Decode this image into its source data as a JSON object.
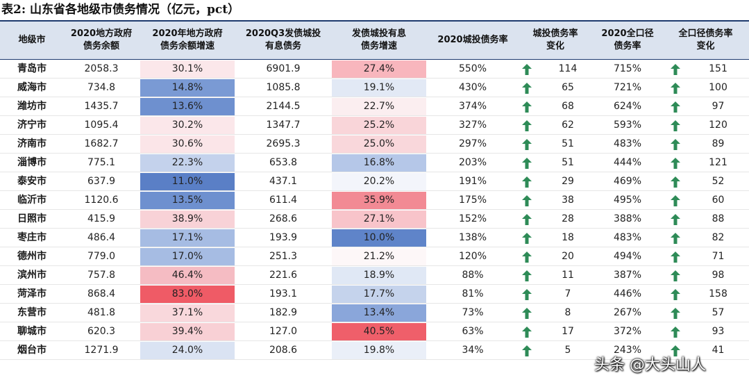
{
  "caption": "表2:  山东省各地级市债务情况（亿元，pct）",
  "columns": [
    "地级市",
    "2020地方政府\n债务余额",
    "2020年地方政府\n债务余额增速",
    "2020Q3发债城投\n有息债务",
    "发债城投有息\n债务增速",
    "2020城投债务率",
    "城投债务率\n变化",
    "2020全口径\n债务率",
    "全口径债务率\n变化"
  ],
  "rows": [
    {
      "city": "青岛市",
      "gov_debt": "2058.3",
      "gov_growth": "30.1%",
      "gov_growth_color": "#fbe7ea",
      "lgfv_debt": "6901.9",
      "lgfv_growth": "27.4%",
      "lgfv_growth_color": "#f8b6bd",
      "lgfv_ratio": "550%",
      "lgfv_change": "114",
      "total_ratio": "715%",
      "total_change": "151"
    },
    {
      "city": "威海市",
      "gov_debt": "734.8",
      "gov_growth": "14.8%",
      "gov_growth_color": "#7a9ad4",
      "lgfv_debt": "1085.8",
      "lgfv_growth": "19.1%",
      "lgfv_growth_color": "#e2e9f5",
      "lgfv_ratio": "430%",
      "lgfv_change": "65",
      "total_ratio": "721%",
      "total_change": "100"
    },
    {
      "city": "潍坊市",
      "gov_debt": "1435.7",
      "gov_growth": "13.6%",
      "gov_growth_color": "#6e90cf",
      "lgfv_debt": "2144.5",
      "lgfv_growth": "22.7%",
      "lgfv_growth_color": "#fbeef0",
      "lgfv_ratio": "374%",
      "lgfv_change": "68",
      "total_ratio": "624%",
      "total_change": "97"
    },
    {
      "city": "济宁市",
      "gov_debt": "1095.4",
      "gov_growth": "30.2%",
      "gov_growth_color": "#fbe7ea",
      "lgfv_debt": "1347.7",
      "lgfv_growth": "25.2%",
      "lgfv_growth_color": "#f9d5d9",
      "lgfv_ratio": "327%",
      "lgfv_change": "62",
      "total_ratio": "593%",
      "total_change": "120"
    },
    {
      "city": "济南市",
      "gov_debt": "1682.7",
      "gov_growth": "30.6%",
      "gov_growth_color": "#fbe5e8",
      "lgfv_debt": "2695.3",
      "lgfv_growth": "25.0%",
      "lgfv_growth_color": "#f9d7db",
      "lgfv_ratio": "297%",
      "lgfv_change": "51",
      "total_ratio": "483%",
      "total_change": "89"
    },
    {
      "city": "淄博市",
      "gov_debt": "775.1",
      "gov_growth": "22.3%",
      "gov_growth_color": "#c4d2ec",
      "lgfv_debt": "653.8",
      "lgfv_growth": "16.8%",
      "lgfv_growth_color": "#b5c7e8",
      "lgfv_ratio": "203%",
      "lgfv_change": "51",
      "total_ratio": "444%",
      "total_change": "121"
    },
    {
      "city": "泰安市",
      "gov_debt": "637.9",
      "gov_growth": "11.0%",
      "gov_growth_color": "#5a7fc6",
      "lgfv_debt": "437.1",
      "lgfv_growth": "20.2%",
      "lgfv_growth_color": "#f3f5fb",
      "lgfv_ratio": "191%",
      "lgfv_change": "29",
      "total_ratio": "469%",
      "total_change": "52"
    },
    {
      "city": "临沂市",
      "gov_debt": "1120.6",
      "gov_growth": "13.5%",
      "gov_growth_color": "#6e90cf",
      "lgfv_debt": "611.4",
      "lgfv_growth": "35.9%",
      "lgfv_growth_color": "#f28a94",
      "lgfv_ratio": "175%",
      "lgfv_change": "38",
      "total_ratio": "495%",
      "total_change": "60"
    },
    {
      "city": "日照市",
      "gov_debt": "415.9",
      "gov_growth": "38.9%",
      "gov_growth_color": "#f8d2d7",
      "lgfv_debt": "268.6",
      "lgfv_growth": "27.1%",
      "lgfv_growth_color": "#f8c4ca",
      "lgfv_ratio": "152%",
      "lgfv_change": "28",
      "total_ratio": "388%",
      "total_change": "88"
    },
    {
      "city": "枣庄市",
      "gov_debt": "486.4",
      "gov_growth": "17.1%",
      "gov_growth_color": "#a6bce3",
      "lgfv_debt": "193.9",
      "lgfv_growth": "10.0%",
      "lgfv_growth_color": "#5f84c9",
      "lgfv_ratio": "138%",
      "lgfv_change": "18",
      "total_ratio": "483%",
      "total_change": "82"
    },
    {
      "city": "德州市",
      "gov_debt": "779.0",
      "gov_growth": "17.0%",
      "gov_growth_color": "#a6bce3",
      "lgfv_debt": "251.3",
      "lgfv_growth": "21.2%",
      "lgfv_growth_color": "#fdf7f8",
      "lgfv_ratio": "120%",
      "lgfv_change": "20",
      "total_ratio": "494%",
      "total_change": "71"
    },
    {
      "city": "滨州市",
      "gov_debt": "757.8",
      "gov_growth": "46.4%",
      "gov_growth_color": "#f5bcc3",
      "lgfv_debt": "221.6",
      "lgfv_growth": "18.9%",
      "lgfv_growth_color": "#e0e8f5",
      "lgfv_ratio": "88%",
      "lgfv_change": "11",
      "total_ratio": "387%",
      "total_change": "98"
    },
    {
      "city": "菏泽市",
      "gov_debt": "868.4",
      "gov_growth": "83.0%",
      "gov_growth_color": "#ef5b66",
      "lgfv_debt": "193.1",
      "lgfv_growth": "17.7%",
      "lgfv_growth_color": "#c5d3ec",
      "lgfv_ratio": "81%",
      "lgfv_change": "7",
      "total_ratio": "446%",
      "total_change": "158"
    },
    {
      "city": "东营市",
      "gov_debt": "481.8",
      "gov_growth": "37.1%",
      "gov_growth_color": "#f9d8dc",
      "lgfv_debt": "182.9",
      "lgfv_growth": "13.4%",
      "lgfv_growth_color": "#8aa6da",
      "lgfv_ratio": "73%",
      "lgfv_change": "8",
      "total_ratio": "267%",
      "total_change": "57"
    },
    {
      "city": "聊城市",
      "gov_debt": "620.3",
      "gov_growth": "39.4%",
      "gov_growth_color": "#f8d0d5",
      "lgfv_debt": "127.0",
      "lgfv_growth": "40.5%",
      "lgfv_growth_color": "#ef5f6a",
      "lgfv_ratio": "63%",
      "lgfv_change": "17",
      "total_ratio": "372%",
      "total_change": "93"
    },
    {
      "city": "烟台市",
      "gov_debt": "1271.9",
      "gov_growth": "24.0%",
      "gov_growth_color": "#dae3f3",
      "lgfv_debt": "208.6",
      "lgfv_growth": "19.8%",
      "lgfv_growth_color": "#eaeff8",
      "lgfv_ratio": "34%",
      "lgfv_change": "5",
      "total_ratio": "243%",
      "total_change": "41"
    }
  ],
  "arrow_color": "#2e8b57",
  "arrow_icon": "up-arrow-icon",
  "watermark": "头条 @大头山人"
}
